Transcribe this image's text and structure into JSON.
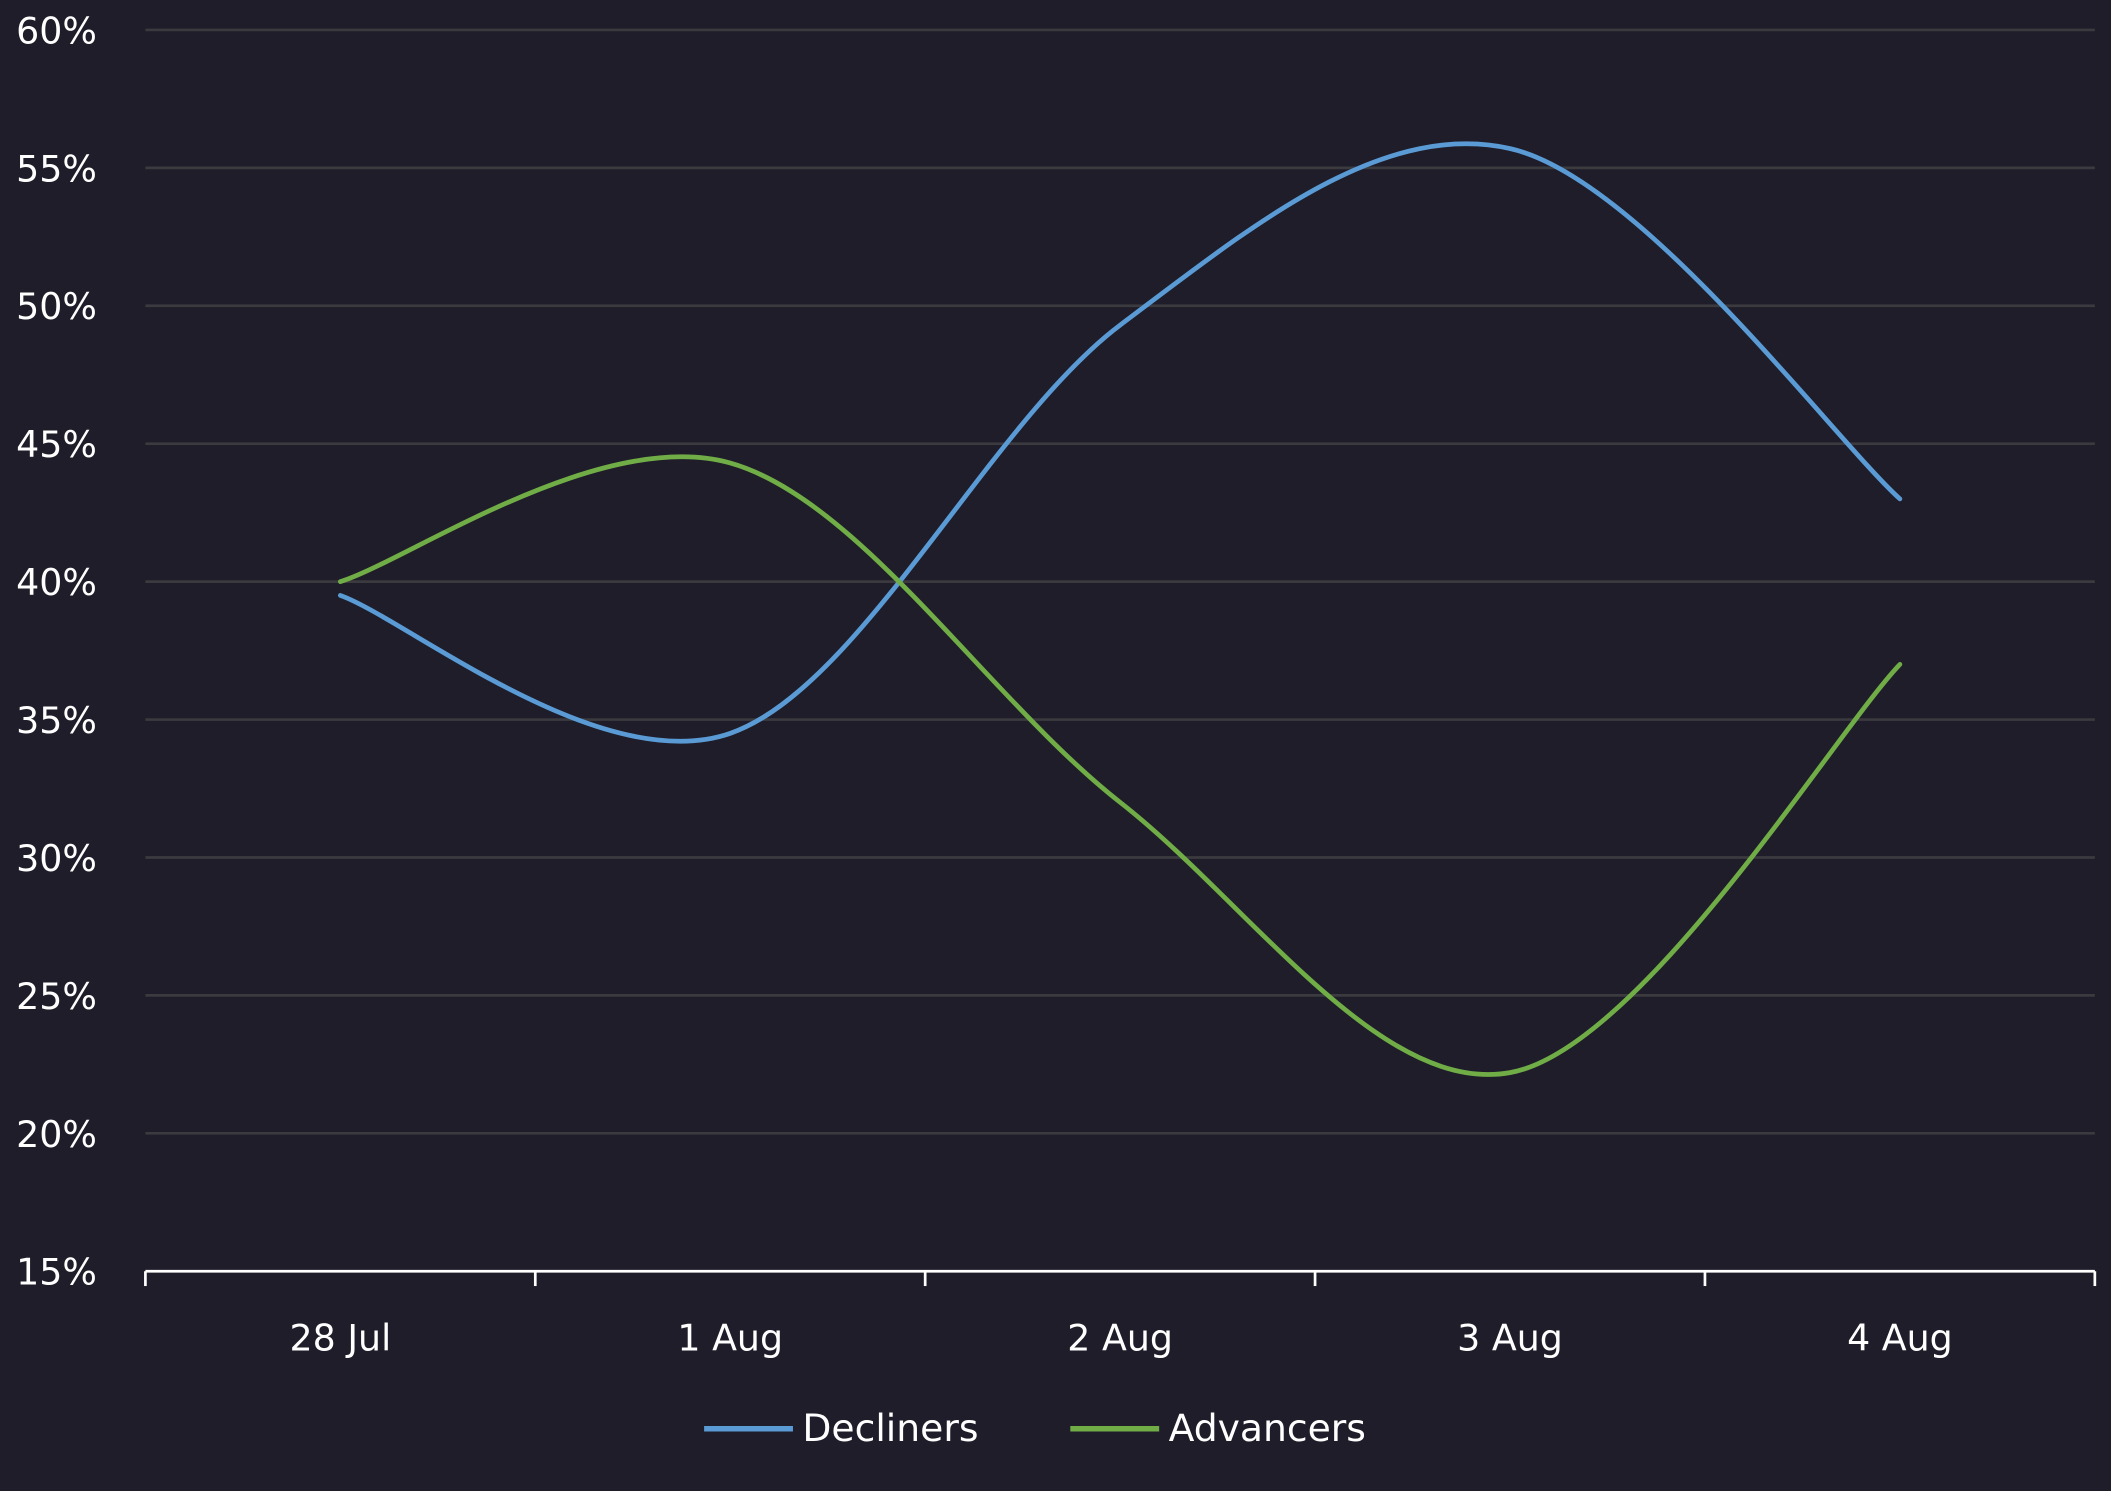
{
  "chart_data": {
    "type": "line",
    "title": "",
    "xlabel": "",
    "ylabel": "",
    "categories": [
      "28 Jul",
      "1 Aug",
      "2 Aug",
      "3 Aug",
      "4 Aug"
    ],
    "series": [
      {
        "name": "Decliners",
        "color": "#5b9bd5",
        "values": [
          39.5,
          34.5,
          49.3,
          55.7,
          43.0
        ]
      },
      {
        "name": "Advancers",
        "color": "#70ad47",
        "values": [
          40.0,
          44.3,
          32.0,
          22.2,
          37.0
        ]
      }
    ],
    "ylim": [
      15,
      60
    ],
    "yticks": [
      15,
      20,
      25,
      30,
      35,
      40,
      45,
      50,
      55,
      60
    ],
    "ytick_labels": [
      "15%",
      "20%",
      "25%",
      "30%",
      "35%",
      "40%",
      "45%",
      "50%",
      "55%",
      "60%"
    ],
    "grid": true,
    "smooth": true,
    "legend_position": "bottom-center",
    "background": "#1e1d29",
    "grid_color": "#3a3a3f"
  }
}
